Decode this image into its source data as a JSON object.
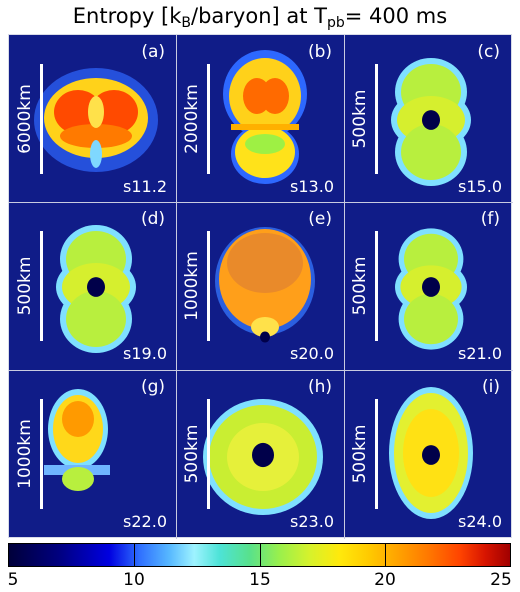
{
  "title": {
    "prefix": "Entropy [k",
    "sub1": "B",
    "middle": "/baryon] at T",
    "sub2": "pb",
    "suffix": "= 400 ms"
  },
  "panels": [
    {
      "label": "(a)",
      "model": "s11.2",
      "scale": "6000km",
      "shape": "pretzel"
    },
    {
      "label": "(b)",
      "model": "s13.0",
      "scale": "2000km",
      "shape": "bipolar-lobes"
    },
    {
      "label": "(c)",
      "model": "s15.0",
      "scale": "500km",
      "shape": "peanut"
    },
    {
      "label": "(d)",
      "model": "s19.0",
      "scale": "500km",
      "shape": "peanut"
    },
    {
      "label": "(e)",
      "model": "s20.0",
      "scale": "1000km",
      "shape": "bubble-orange"
    },
    {
      "label": "(f)",
      "model": "s21.0",
      "scale": "500km",
      "shape": "peanut-small"
    },
    {
      "label": "(g)",
      "model": "s22.0",
      "scale": "1000km",
      "shape": "narrow-top"
    },
    {
      "label": "(h)",
      "model": "s23.0",
      "scale": "500km",
      "shape": "wide-oval"
    },
    {
      "label": "(i)",
      "model": "s24.0",
      "scale": "500km",
      "shape": "round-oval"
    }
  ],
  "colorbar": {
    "ticks": [
      "5",
      "10",
      "15",
      "20",
      "25"
    ],
    "min": 5,
    "max": 25
  }
}
